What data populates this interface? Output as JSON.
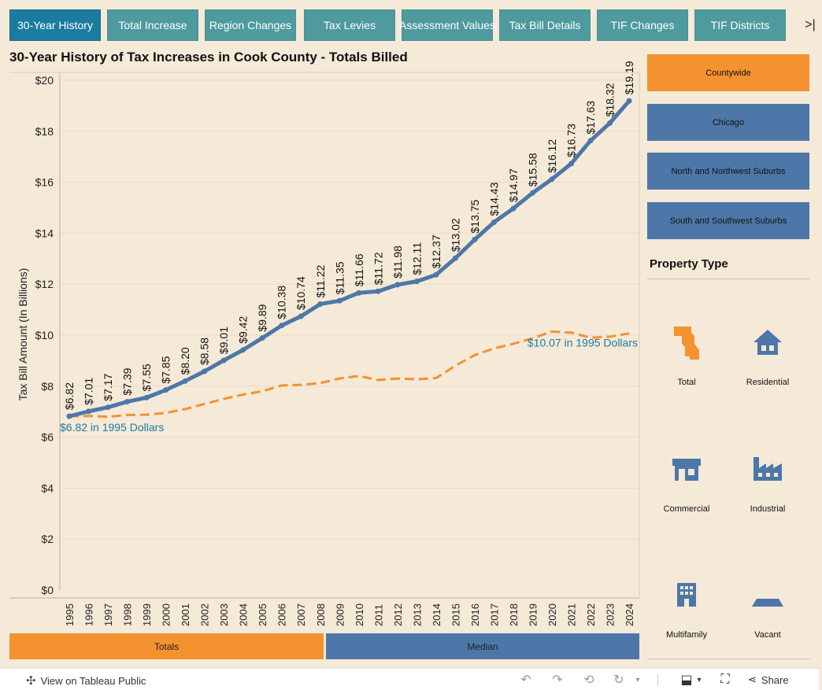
{
  "tabs": [
    {
      "label": "30-Year History",
      "active": true
    },
    {
      "label": "Total Increase",
      "active": false
    },
    {
      "label": "Region Changes",
      "active": false
    },
    {
      "label": "Tax Levies",
      "active": false
    },
    {
      "label": "Assessment Values",
      "active": false
    },
    {
      "label": "Tax Bill Details",
      "active": false
    },
    {
      "label": "TIF Changes",
      "active": false
    },
    {
      "label": "TIF Districts",
      "active": false
    }
  ],
  "tab_next_glyph": ">|",
  "chart_data": {
    "type": "line",
    "title": "30-Year History of Tax Increases in Cook County - Totals Billed",
    "ylabel": "Tax Bill Amount (In Billions)",
    "xlabel": "",
    "ylim": [
      0,
      20
    ],
    "yticks": [
      0,
      2,
      4,
      6,
      8,
      10,
      12,
      14,
      16,
      18,
      20
    ],
    "ytick_labels": [
      "$0",
      "$2",
      "$4",
      "$6",
      "$8",
      "$10",
      "$12",
      "$14",
      "$16",
      "$18",
      "$20"
    ],
    "grid": true,
    "x": [
      "1995",
      "1996",
      "1997",
      "1998",
      "1999",
      "2000",
      "2001",
      "2002",
      "2003",
      "2004",
      "2005",
      "2006",
      "2007",
      "2008",
      "2009",
      "2010",
      "2011",
      "2012",
      "2013",
      "2014",
      "2015",
      "2016",
      "2017",
      "2018",
      "2019",
      "2020",
      "2021",
      "2022",
      "2023",
      "2024"
    ],
    "series": [
      {
        "name": "Totals Billed",
        "style": "solid",
        "color": "#4d77a8",
        "values": [
          6.82,
          7.01,
          7.17,
          7.39,
          7.55,
          7.85,
          8.2,
          8.58,
          9.01,
          9.42,
          9.89,
          10.38,
          10.74,
          11.22,
          11.35,
          11.66,
          11.72,
          11.98,
          12.11,
          12.37,
          13.02,
          13.75,
          14.43,
          14.97,
          15.58,
          16.12,
          16.73,
          17.63,
          18.32,
          19.19
        ],
        "labels": [
          "$6.82",
          "$7.01",
          "$7.17",
          "$7.39",
          "$7.55",
          "$7.85",
          "$8.20",
          "$8.58",
          "$9.01",
          "$9.42",
          "$9.89",
          "$10.38",
          "$10.74",
          "$11.22",
          "$11.35",
          "$11.66",
          "$11.72",
          "$11.98",
          "$12.11",
          "$12.37",
          "$13.02",
          "$13.75",
          "$14.43",
          "$14.97",
          "$15.58",
          "$16.12",
          "$16.73",
          "$17.63",
          "$18.32",
          "$19.19"
        ]
      },
      {
        "name": "In 1995 Dollars",
        "style": "dashed",
        "color": "#f3922f",
        "values": [
          6.82,
          6.83,
          6.8,
          6.87,
          6.88,
          6.95,
          7.1,
          7.3,
          7.5,
          7.67,
          7.8,
          8.03,
          8.05,
          8.12,
          8.3,
          8.4,
          8.24,
          8.3,
          8.27,
          8.32,
          8.8,
          9.22,
          9.48,
          9.66,
          9.88,
          10.14,
          10.1,
          9.9,
          9.94,
          10.07
        ]
      }
    ],
    "annotations": [
      {
        "text": "$6.82 in 1995 Dollars",
        "year": "1995",
        "value": 6.82
      },
      {
        "text": "$10.07 in 1995 Dollars",
        "year": "2024",
        "value": 10.07
      }
    ]
  },
  "measure_toggle": {
    "totals": "Totals",
    "median": "Median",
    "active": "Totals"
  },
  "regions": [
    {
      "label": "Countywide",
      "color": "#f3922f",
      "active": true
    },
    {
      "label": "Chicago",
      "color": "#4d77a8",
      "active": false
    },
    {
      "label": "North and Northwest Suburbs",
      "color": "#4d77a8",
      "active": false
    },
    {
      "label": "South and Southwest Suburbs",
      "color": "#4d77a8",
      "active": false
    }
  ],
  "property_type": {
    "title": "Property Type",
    "items": [
      {
        "label": "Total",
        "icon": "county-map-icon",
        "color": "#f3922f"
      },
      {
        "label": "Residential",
        "icon": "house-icon",
        "color": "#4d77a8"
      },
      {
        "label": "Commercial",
        "icon": "storefront-icon",
        "color": "#4d77a8"
      },
      {
        "label": "Industrial",
        "icon": "factory-icon",
        "color": "#4d77a8"
      },
      {
        "label": "Multifamily",
        "icon": "apartment-icon",
        "color": "#4d77a8"
      },
      {
        "label": "Vacant",
        "icon": "vacant-lot-icon",
        "color": "#4d77a8"
      }
    ]
  },
  "footer": {
    "view_label": "View on Tableau Public",
    "share_label": "Share"
  }
}
